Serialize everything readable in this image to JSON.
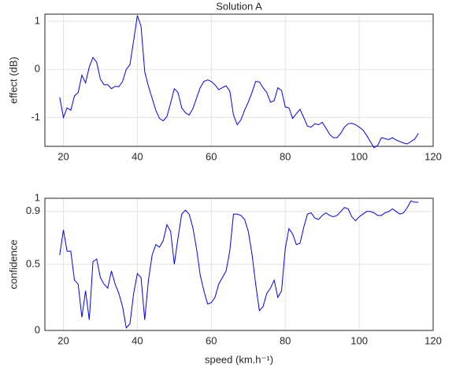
{
  "chart_data": [
    {
      "type": "line",
      "title": "Solution A",
      "y_label": "effect (dB)",
      "x": [
        19,
        20,
        21,
        22,
        23,
        24,
        25,
        26,
        27,
        28,
        29,
        30,
        31,
        32,
        33,
        34,
        35,
        36,
        37,
        38,
        39,
        40,
        41,
        42,
        43,
        44,
        45,
        46,
        47,
        48,
        49,
        50,
        51,
        52,
        53,
        54,
        55,
        56,
        57,
        58,
        59,
        60,
        61,
        62,
        63,
        64,
        65,
        66,
        67,
        68,
        69,
        70,
        71,
        72,
        73,
        74,
        75,
        76,
        77,
        78,
        79,
        80,
        81,
        82,
        83,
        84,
        85,
        86,
        87,
        88,
        89,
        90,
        91,
        92,
        93,
        94,
        95,
        96,
        97,
        98,
        99,
        100,
        101,
        102,
        103,
        104,
        105,
        106,
        107,
        108,
        109,
        110,
        111,
        112,
        113,
        114,
        115,
        116
      ],
      "values": [
        -0.58,
        -1.0,
        -0.8,
        -0.85,
        -0.55,
        -0.48,
        -0.12,
        -0.28,
        0.05,
        0.25,
        0.15,
        -0.2,
        -0.32,
        -0.32,
        -0.4,
        -0.35,
        -0.36,
        -0.25,
        0.0,
        0.1,
        0.6,
        1.12,
        0.9,
        -0.05,
        -0.35,
        -0.6,
        -0.85,
        -1.02,
        -1.07,
        -0.98,
        -0.7,
        -0.4,
        -0.48,
        -0.8,
        -0.9,
        -0.95,
        -0.82,
        -0.6,
        -0.38,
        -0.25,
        -0.22,
        -0.25,
        -0.32,
        -0.42,
        -0.38,
        -0.34,
        -0.45,
        -0.95,
        -1.15,
        -1.05,
        -0.85,
        -0.68,
        -0.48,
        -0.25,
        -0.26,
        -0.38,
        -0.48,
        -0.68,
        -0.65,
        -0.38,
        -0.44,
        -0.78,
        -0.8,
        -1.02,
        -0.92,
        -0.83,
        -1.0,
        -1.18,
        -1.2,
        -1.13,
        -1.15,
        -1.1,
        -1.22,
        -1.35,
        -1.42,
        -1.42,
        -1.33,
        -1.2,
        -1.13,
        -1.12,
        -1.15,
        -1.2,
        -1.26,
        -1.37,
        -1.5,
        -1.63,
        -1.58,
        -1.42,
        -1.44,
        -1.46,
        -1.42,
        -1.47,
        -1.5,
        -1.53,
        -1.55,
        -1.5,
        -1.45,
        -1.33
      ],
      "color": "#0000ff",
      "xlim": [
        15,
        120
      ],
      "ylim": [
        -1.6,
        1.15
      ],
      "xticks": [
        20,
        40,
        60,
        80,
        100,
        120
      ],
      "yticks": [
        -1,
        0,
        1
      ],
      "grid": true
    },
    {
      "type": "line",
      "x_label": "speed (km.h⁻¹)",
      "y_label": "confidence",
      "x": [
        19,
        20,
        21,
        22,
        23,
        24,
        25,
        26,
        27,
        28,
        29,
        30,
        31,
        32,
        33,
        34,
        35,
        36,
        37,
        38,
        39,
        40,
        41,
        42,
        43,
        44,
        45,
        46,
        47,
        48,
        49,
        50,
        51,
        52,
        53,
        54,
        55,
        56,
        57,
        58,
        59,
        60,
        61,
        62,
        63,
        64,
        65,
        66,
        67,
        68,
        69,
        70,
        71,
        72,
        73,
        74,
        75,
        76,
        77,
        78,
        79,
        80,
        81,
        82,
        83,
        84,
        85,
        86,
        87,
        88,
        89,
        90,
        91,
        92,
        93,
        94,
        95,
        96,
        97,
        98,
        99,
        100,
        101,
        102,
        103,
        104,
        105,
        106,
        107,
        108,
        109,
        110,
        111,
        112,
        113,
        114,
        115,
        116
      ],
      "values": [
        0.57,
        0.76,
        0.6,
        0.6,
        0.38,
        0.35,
        0.1,
        0.3,
        0.08,
        0.52,
        0.54,
        0.4,
        0.35,
        0.32,
        0.45,
        0.35,
        0.28,
        0.18,
        0.02,
        0.05,
        0.28,
        0.43,
        0.4,
        0.08,
        0.38,
        0.57,
        0.65,
        0.63,
        0.68,
        0.8,
        0.75,
        0.5,
        0.7,
        0.88,
        0.91,
        0.88,
        0.78,
        0.62,
        0.42,
        0.3,
        0.2,
        0.21,
        0.25,
        0.35,
        0.4,
        0.45,
        0.6,
        0.88,
        0.88,
        0.87,
        0.84,
        0.75,
        0.58,
        0.35,
        0.15,
        0.18,
        0.28,
        0.32,
        0.38,
        0.25,
        0.3,
        0.62,
        0.77,
        0.73,
        0.65,
        0.66,
        0.78,
        0.88,
        0.89,
        0.85,
        0.84,
        0.87,
        0.89,
        0.87,
        0.86,
        0.87,
        0.9,
        0.93,
        0.92,
        0.86,
        0.83,
        0.86,
        0.88,
        0.9,
        0.9,
        0.89,
        0.87,
        0.87,
        0.89,
        0.9,
        0.92,
        0.9,
        0.88,
        0.89,
        0.93,
        0.98,
        0.97,
        0.97
      ],
      "color": "#0000ff",
      "xlim": [
        15,
        120
      ],
      "ylim": [
        0,
        1
      ],
      "xticks": [
        20,
        40,
        60,
        80,
        100,
        120
      ],
      "yticks": [
        0,
        0.5,
        0.9,
        1
      ],
      "grid": true
    }
  ]
}
